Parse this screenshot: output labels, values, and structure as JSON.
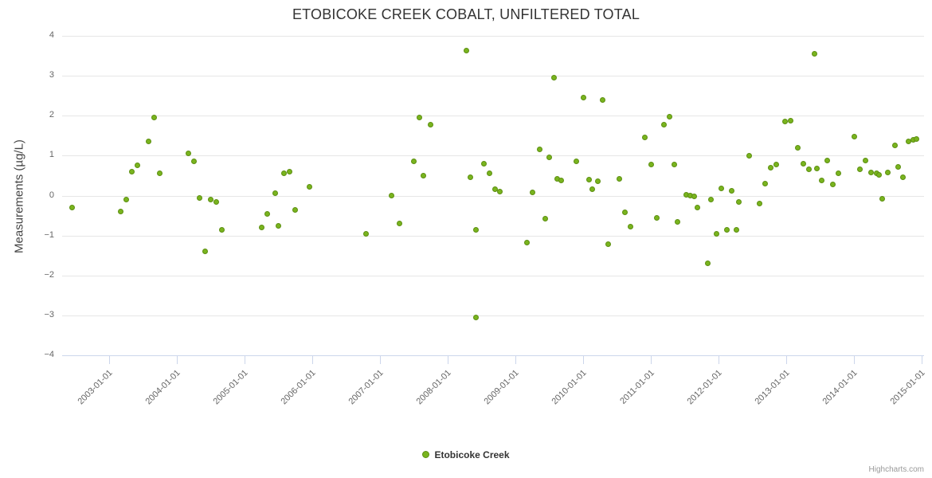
{
  "credits": "Highcharts.com",
  "legend": {
    "label": "Etobicoke Creek"
  },
  "chart_data": {
    "type": "scatter",
    "title": "ETOBICOKE CREEK COBALT, UNFILTERED TOTAL",
    "xlabel": "",
    "ylabel": "Measurements (µg/L)",
    "ylim": [
      -4,
      4
    ],
    "grid": "horizontal",
    "legend_position": "bottom",
    "marker_color": "#79b41e",
    "y_ticks": [
      4,
      3,
      2,
      1,
      0,
      -1,
      -2,
      -3,
      -4
    ],
    "x_ticks": [
      "2003-01-01",
      "2004-01-01",
      "2005-01-01",
      "2006-01-01",
      "2007-01-01",
      "2008-01-01",
      "2009-01-01",
      "2010-01-01",
      "2011-01-01",
      "2012-01-01",
      "2013-01-01",
      "2014-01-01",
      "2015-01-01"
    ],
    "series": [
      {
        "name": "Etobicoke Creek",
        "color": "#79b41e",
        "points": [
          [
            "2002-06-15",
            -0.3
          ],
          [
            "2003-03-01",
            -0.4
          ],
          [
            "2003-04-01",
            -0.1
          ],
          [
            "2003-05-01",
            0.6
          ],
          [
            "2003-06-01",
            0.75
          ],
          [
            "2003-08-01",
            1.35
          ],
          [
            "2003-09-01",
            1.95
          ],
          [
            "2003-10-01",
            0.55
          ],
          [
            "2004-03-01",
            1.05
          ],
          [
            "2004-04-01",
            0.85
          ],
          [
            "2004-05-01",
            -0.05
          ],
          [
            "2004-06-01",
            -1.4
          ],
          [
            "2004-07-01",
            -0.1
          ],
          [
            "2004-08-01",
            -0.15
          ],
          [
            "2004-09-01",
            -0.85
          ],
          [
            "2005-04-01",
            -0.8
          ],
          [
            "2005-05-01",
            -0.45
          ],
          [
            "2005-06-15",
            0.05
          ],
          [
            "2005-07-01",
            -0.75
          ],
          [
            "2005-08-01",
            0.55
          ],
          [
            "2005-09-01",
            0.6
          ],
          [
            "2005-10-01",
            -0.35
          ],
          [
            "2005-12-15",
            0.22
          ],
          [
            "2006-10-15",
            -0.95
          ],
          [
            "2007-03-01",
            0.0
          ],
          [
            "2007-04-15",
            -0.7
          ],
          [
            "2007-07-01",
            0.85
          ],
          [
            "2007-08-01",
            1.95
          ],
          [
            "2007-08-20",
            0.5
          ],
          [
            "2007-10-01",
            1.78
          ],
          [
            "2008-04-10",
            3.63
          ],
          [
            "2008-05-01",
            0.45
          ],
          [
            "2008-06-01",
            -0.85
          ],
          [
            "2008-06-01",
            -3.05
          ],
          [
            "2008-07-15",
            0.8
          ],
          [
            "2008-08-15",
            0.55
          ],
          [
            "2008-09-15",
            0.15
          ],
          [
            "2008-10-10",
            0.1
          ],
          [
            "2009-03-01",
            -1.18
          ],
          [
            "2009-04-01",
            0.08
          ],
          [
            "2009-05-10",
            1.15
          ],
          [
            "2009-06-10",
            -0.58
          ],
          [
            "2009-07-01",
            0.95
          ],
          [
            "2009-07-25",
            2.95
          ],
          [
            "2009-08-15",
            0.42
          ],
          [
            "2009-09-05",
            0.38
          ],
          [
            "2009-11-25",
            0.85
          ],
          [
            "2010-01-01",
            2.45
          ],
          [
            "2010-02-01",
            0.4
          ],
          [
            "2010-02-20",
            0.15
          ],
          [
            "2010-03-20",
            0.35
          ],
          [
            "2010-04-15",
            2.4
          ],
          [
            "2010-05-15",
            -1.22
          ],
          [
            "2010-07-15",
            0.42
          ],
          [
            "2010-08-15",
            -0.42
          ],
          [
            "2010-09-15",
            -0.78
          ],
          [
            "2010-12-01",
            1.45
          ],
          [
            "2011-01-01",
            0.78
          ],
          [
            "2011-02-01",
            -0.55
          ],
          [
            "2011-03-10",
            1.78
          ],
          [
            "2011-04-10",
            1.97
          ],
          [
            "2011-05-05",
            0.78
          ],
          [
            "2011-05-25",
            -0.65
          ],
          [
            "2011-07-10",
            0.02
          ],
          [
            "2011-08-01",
            0.0
          ],
          [
            "2011-08-20",
            -0.02
          ],
          [
            "2011-09-10",
            -0.3
          ],
          [
            "2011-11-05",
            -1.7
          ],
          [
            "2011-11-20",
            -0.1
          ],
          [
            "2011-12-20",
            -0.95
          ],
          [
            "2012-01-15",
            0.18
          ],
          [
            "2012-02-15",
            -0.85
          ],
          [
            "2012-03-10",
            0.12
          ],
          [
            "2012-04-05",
            -0.85
          ],
          [
            "2012-04-20",
            -0.15
          ],
          [
            "2012-06-15",
            1.0
          ],
          [
            "2012-08-10",
            -0.2
          ],
          [
            "2012-09-10",
            0.3
          ],
          [
            "2012-10-10",
            0.7
          ],
          [
            "2012-11-10",
            0.78
          ],
          [
            "2012-12-25",
            1.85
          ],
          [
            "2013-01-25",
            1.88
          ],
          [
            "2013-03-01",
            1.2
          ],
          [
            "2013-04-01",
            0.8
          ],
          [
            "2013-05-01",
            0.65
          ],
          [
            "2013-06-01",
            3.55
          ],
          [
            "2013-06-15",
            0.68
          ],
          [
            "2013-07-10",
            0.38
          ],
          [
            "2013-08-10",
            0.88
          ],
          [
            "2013-09-10",
            0.28
          ],
          [
            "2013-10-10",
            0.55
          ],
          [
            "2014-01-01",
            1.48
          ],
          [
            "2014-02-01",
            0.65
          ],
          [
            "2014-03-01",
            0.88
          ],
          [
            "2014-04-01",
            0.58
          ],
          [
            "2014-05-01",
            0.55
          ],
          [
            "2014-05-15",
            0.52
          ],
          [
            "2014-06-01",
            -0.08
          ],
          [
            "2014-07-01",
            0.58
          ],
          [
            "2014-08-10",
            1.25
          ],
          [
            "2014-08-25",
            0.72
          ],
          [
            "2014-09-20",
            0.45
          ],
          [
            "2014-10-20",
            1.35
          ],
          [
            "2014-11-15",
            1.4
          ],
          [
            "2014-12-05",
            1.42
          ]
        ]
      }
    ]
  }
}
